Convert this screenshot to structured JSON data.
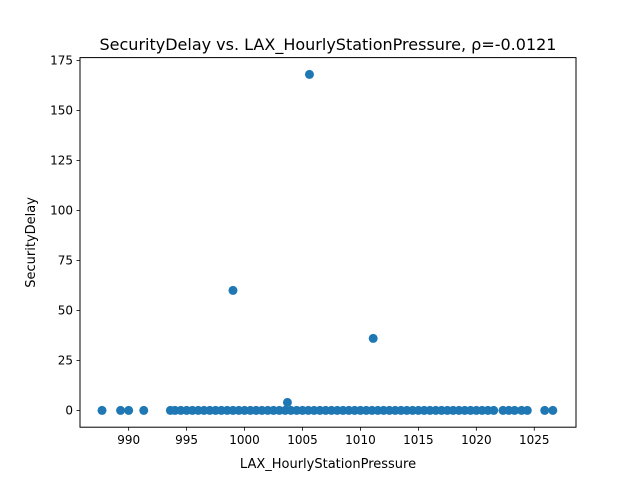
{
  "chart_data": {
    "type": "scatter",
    "title": "SecurityDelay vs. LAX_HourlyStationPressure, ρ=-0.0121",
    "xlabel": "LAX_HourlyStationPressure",
    "ylabel": "SecurityDelay",
    "xlim": [
      985.8,
      1028.6
    ],
    "ylim": [
      -8.4,
      176.4
    ],
    "xticks": [
      990,
      995,
      1000,
      1005,
      1010,
      1015,
      1020,
      1025
    ],
    "yticks": [
      0,
      25,
      50,
      75,
      100,
      125,
      150,
      175
    ],
    "grid": false,
    "marker_color": "#1f77b4",
    "series": [
      {
        "points": [
          {
            "x": 987.7,
            "y": 0
          },
          {
            "x": 989.3,
            "y": 0
          },
          {
            "x": 990.0,
            "y": 0
          },
          {
            "x": 991.3,
            "y": 0
          },
          {
            "x": 993.6,
            "y": 0
          },
          {
            "x": 994.0,
            "y": 0
          },
          {
            "x": 994.5,
            "y": 0
          },
          {
            "x": 995.0,
            "y": 0
          },
          {
            "x": 995.5,
            "y": 0
          },
          {
            "x": 996.0,
            "y": 0
          },
          {
            "x": 996.5,
            "y": 0
          },
          {
            "x": 997.0,
            "y": 0
          },
          {
            "x": 997.5,
            "y": 0
          },
          {
            "x": 998.0,
            "y": 0
          },
          {
            "x": 998.5,
            "y": 0
          },
          {
            "x": 999.0,
            "y": 0
          },
          {
            "x": 999.5,
            "y": 0
          },
          {
            "x": 1000.0,
            "y": 0
          },
          {
            "x": 1000.5,
            "y": 0
          },
          {
            "x": 1001.0,
            "y": 0
          },
          {
            "x": 1001.5,
            "y": 0
          },
          {
            "x": 1002.0,
            "y": 0
          },
          {
            "x": 1002.5,
            "y": 0
          },
          {
            "x": 1003.0,
            "y": 0
          },
          {
            "x": 1003.5,
            "y": 0
          },
          {
            "x": 1004.0,
            "y": 0
          },
          {
            "x": 1004.5,
            "y": 0
          },
          {
            "x": 1005.0,
            "y": 0
          },
          {
            "x": 1005.5,
            "y": 0
          },
          {
            "x": 1006.0,
            "y": 0
          },
          {
            "x": 1006.5,
            "y": 0
          },
          {
            "x": 1007.0,
            "y": 0
          },
          {
            "x": 1007.5,
            "y": 0
          },
          {
            "x": 1008.0,
            "y": 0
          },
          {
            "x": 1008.5,
            "y": 0
          },
          {
            "x": 1009.0,
            "y": 0
          },
          {
            "x": 1009.5,
            "y": 0
          },
          {
            "x": 1010.0,
            "y": 0
          },
          {
            "x": 1010.5,
            "y": 0
          },
          {
            "x": 1011.0,
            "y": 0
          },
          {
            "x": 1011.5,
            "y": 0
          },
          {
            "x": 1012.0,
            "y": 0
          },
          {
            "x": 1012.5,
            "y": 0
          },
          {
            "x": 1013.0,
            "y": 0
          },
          {
            "x": 1013.5,
            "y": 0
          },
          {
            "x": 1014.0,
            "y": 0
          },
          {
            "x": 1014.5,
            "y": 0
          },
          {
            "x": 1015.0,
            "y": 0
          },
          {
            "x": 1015.5,
            "y": 0
          },
          {
            "x": 1016.0,
            "y": 0
          },
          {
            "x": 1016.5,
            "y": 0
          },
          {
            "x": 1017.0,
            "y": 0
          },
          {
            "x": 1017.5,
            "y": 0
          },
          {
            "x": 1018.0,
            "y": 0
          },
          {
            "x": 1018.5,
            "y": 0
          },
          {
            "x": 1019.0,
            "y": 0
          },
          {
            "x": 1019.5,
            "y": 0
          },
          {
            "x": 1020.0,
            "y": 0
          },
          {
            "x": 1020.5,
            "y": 0
          },
          {
            "x": 1021.0,
            "y": 0
          },
          {
            "x": 1021.5,
            "y": 0
          },
          {
            "x": 1022.3,
            "y": 0
          },
          {
            "x": 1022.8,
            "y": 0
          },
          {
            "x": 1023.3,
            "y": 0
          },
          {
            "x": 1023.9,
            "y": 0
          },
          {
            "x": 1024.4,
            "y": 0
          },
          {
            "x": 1025.9,
            "y": 0
          },
          {
            "x": 1026.6,
            "y": 0
          },
          {
            "x": 1003.7,
            "y": 4
          },
          {
            "x": 999.0,
            "y": 60
          },
          {
            "x": 1011.1,
            "y": 36
          },
          {
            "x": 1005.6,
            "y": 168
          }
        ]
      }
    ]
  }
}
